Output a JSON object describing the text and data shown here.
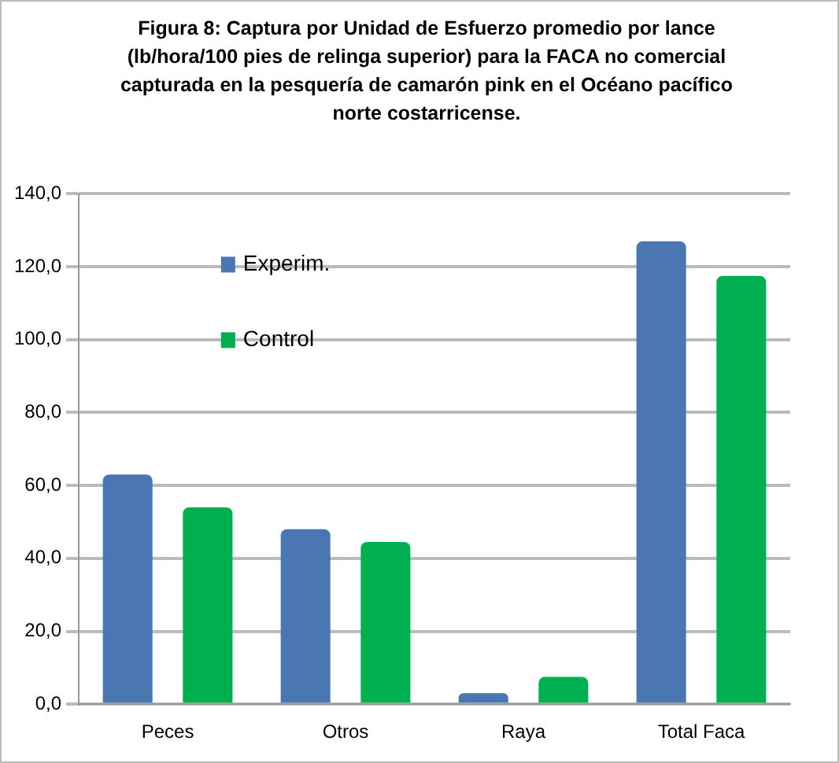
{
  "chart_data": {
    "type": "bar",
    "title": "Figura 8: Captura por Unidad de Esfuerzo promedio por lance (lb/hora/100 pies de relinga superior) para la FACA no comercial capturada en la pesquería de camarón pink en el Océano pacífico norte costarricense.",
    "categories": [
      "Peces",
      "Otros",
      "Raya",
      "Total Faca"
    ],
    "series": [
      {
        "name": "Experim.",
        "color": "#4a76b2",
        "values": [
          63,
          48,
          3,
          127
        ]
      },
      {
        "name": "Control",
        "color": "#00b050",
        "values": [
          54,
          44.5,
          7.5,
          117.5
        ]
      }
    ],
    "ylim": [
      0,
      140
    ],
    "yticks": [
      {
        "value": 0,
        "label": "0,0"
      },
      {
        "value": 20,
        "label": "20,0"
      },
      {
        "value": 40,
        "label": "40,0"
      },
      {
        "value": 60,
        "label": "60,0"
      },
      {
        "value": 80,
        "label": "80,0"
      },
      {
        "value": 100,
        "label": "100,0"
      },
      {
        "value": 120,
        "label": "120,0"
      },
      {
        "value": 140,
        "label": "140,0"
      }
    ],
    "grid": "y",
    "legend": "top left"
  }
}
